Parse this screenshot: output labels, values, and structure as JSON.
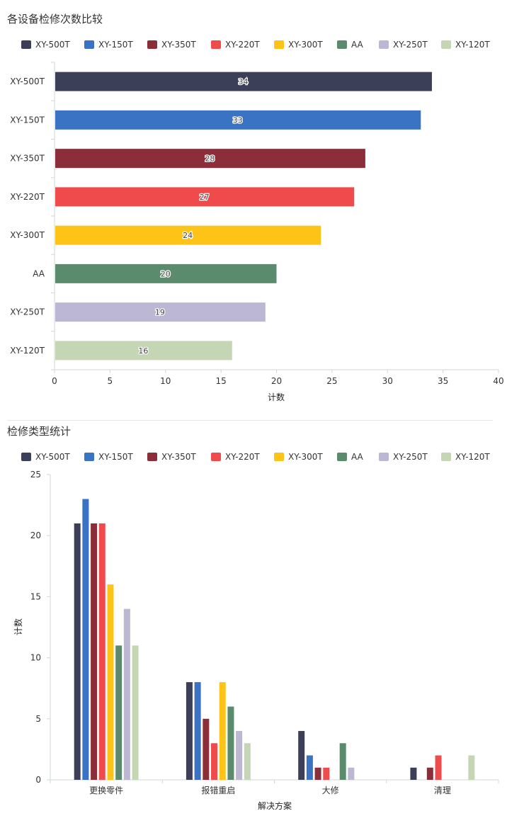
{
  "panels": {
    "panel1_title": "各设备检修次数比较",
    "panel2_title": "检修类型统计"
  },
  "chart_data": [
    {
      "type": "bar",
      "orientation": "horizontal",
      "title": "各设备检修次数比较",
      "categories": [
        "XY-500T",
        "XY-150T",
        "XY-350T",
        "XY-220T",
        "XY-300T",
        "AA",
        "XY-250T",
        "XY-120T"
      ],
      "values": [
        34,
        33,
        28,
        27,
        24,
        20,
        19,
        16
      ],
      "colors": [
        "#3b3f58",
        "#3a72c4",
        "#8b2e39",
        "#f04b4c",
        "#fec317",
        "#5a8b6c",
        "#bcb8d3",
        "#c5d6b4"
      ],
      "legend": [
        "XY-500T",
        "XY-150T",
        "XY-350T",
        "XY-220T",
        "XY-300T",
        "AA",
        "XY-250T",
        "XY-120T"
      ],
      "legend_position": "top",
      "xlabel": "计数",
      "ylabel": "",
      "xlim": [
        0,
        40
      ],
      "xticks": [
        0,
        5,
        10,
        15,
        20,
        25,
        30,
        35,
        40
      ],
      "data_labels": true
    },
    {
      "type": "bar",
      "orientation": "vertical",
      "title": "检修类型统计",
      "categories": [
        "更换零件",
        "报错重启",
        "大修",
        "清理"
      ],
      "series": [
        {
          "name": "XY-500T",
          "color": "#3b3f58",
          "values": [
            21,
            8,
            4,
            1
          ]
        },
        {
          "name": "XY-150T",
          "color": "#3a72c4",
          "values": [
            23,
            8,
            2,
            0
          ]
        },
        {
          "name": "XY-350T",
          "color": "#8b2e39",
          "values": [
            21,
            5,
            1,
            1
          ]
        },
        {
          "name": "XY-220T",
          "color": "#f04b4c",
          "values": [
            21,
            3,
            1,
            2
          ]
        },
        {
          "name": "XY-300T",
          "color": "#fec317",
          "values": [
            16,
            8,
            0,
            0
          ]
        },
        {
          "name": "AA",
          "color": "#5a8b6c",
          "values": [
            11,
            6,
            3,
            0
          ]
        },
        {
          "name": "XY-250T",
          "color": "#bcb8d3",
          "values": [
            14,
            4,
            1,
            0
          ]
        },
        {
          "name": "XY-120T",
          "color": "#c5d6b4",
          "values": [
            11,
            3,
            0,
            2
          ]
        }
      ],
      "legend_position": "top",
      "xlabel": "解决方案",
      "ylabel": "计数",
      "ylim": [
        0,
        25
      ],
      "yticks": [
        0,
        5,
        10,
        15,
        20,
        25
      ]
    }
  ]
}
